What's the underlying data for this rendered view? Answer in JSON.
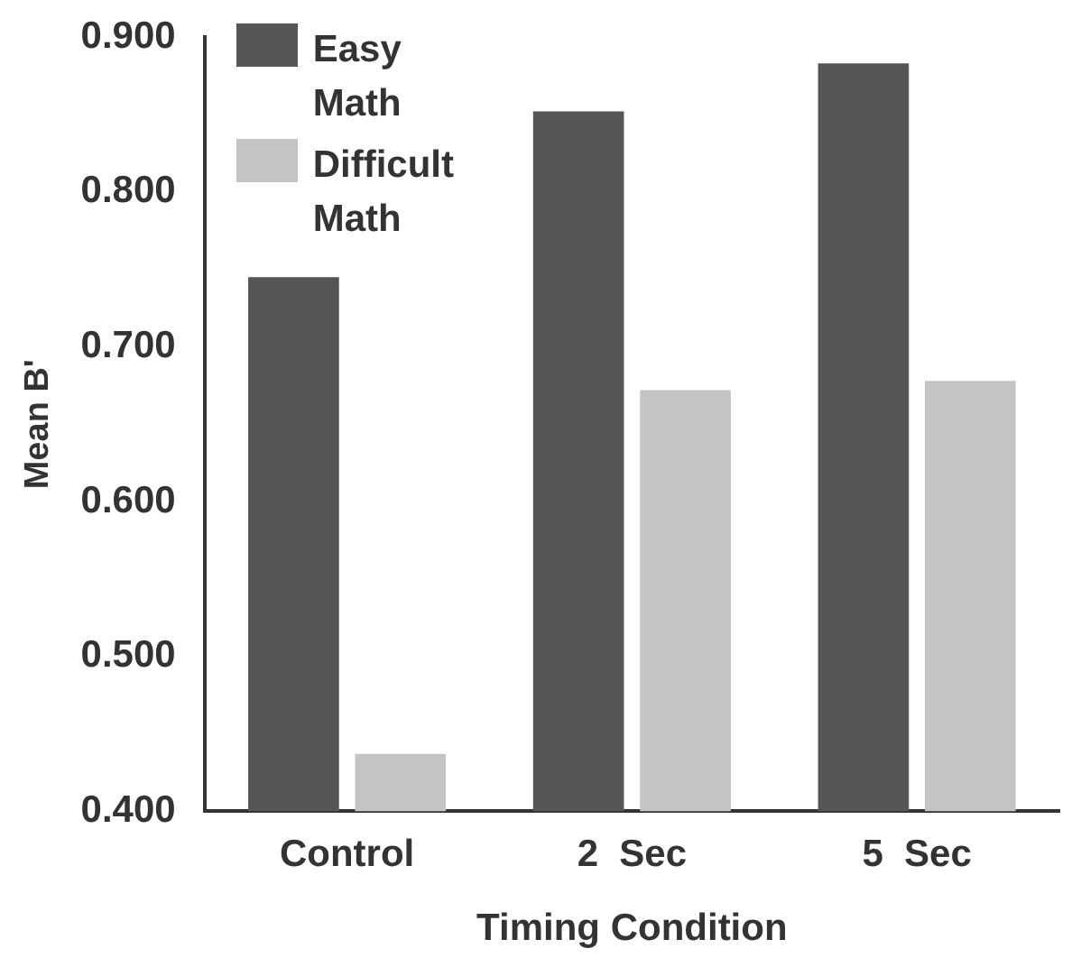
{
  "chart_data": {
    "type": "bar",
    "xlabel": "Timing Condition",
    "ylabel": "Mean B'",
    "categories": [
      "Control",
      "2  Sec",
      "5  Sec"
    ],
    "series": [
      {
        "name": "Easy Math",
        "color": "#555555",
        "values": [
          0.745,
          0.852,
          0.883
        ]
      },
      {
        "name": "Difficult Math",
        "color": "#c4c4c4",
        "values": [
          0.437,
          0.672,
          0.678
        ]
      }
    ],
    "ylim": [
      0.4,
      0.9
    ],
    "yticks": [
      {
        "value": 0.4,
        "label": "0.400"
      },
      {
        "value": 0.5,
        "label": "0.500"
      },
      {
        "value": 0.6,
        "label": "0.600"
      },
      {
        "value": 0.7,
        "label": "0.700"
      },
      {
        "value": 0.8,
        "label": "0.800"
      },
      {
        "value": 0.9,
        "label": "0.900"
      }
    ],
    "grid": false,
    "legend": "top left"
  }
}
